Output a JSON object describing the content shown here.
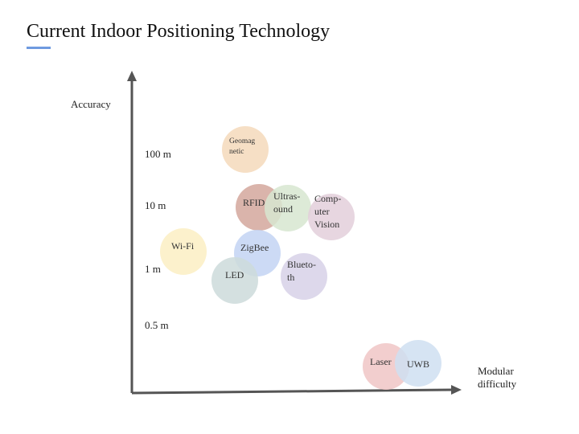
{
  "title": "Current Indoor Positioning Technology",
  "accent_color": "#6f9ae0",
  "axis_color": "#555555",
  "y_axis_label": "Accuracy",
  "x_axis_label": [
    "Modular",
    "difficulty"
  ],
  "y_ticks": [
    {
      "label": "100 m"
    },
    {
      "label": "10 m"
    },
    {
      "label": "1 m"
    },
    {
      "label": "0.5 m"
    }
  ],
  "technologies": [
    {
      "label": [
        "Geomag",
        "netic"
      ],
      "color": "#f5d9bb"
    },
    {
      "label": [
        "RFID"
      ],
      "color": "#d3a79c"
    },
    {
      "label": [
        "Ultras-",
        "ound"
      ],
      "color": "#d7e6d0"
    },
    {
      "label": [
        "Comp-",
        "uter",
        "Vision"
      ],
      "color": "#e3cfdb"
    },
    {
      "label": [
        "Wi-Fi"
      ],
      "color": "#fbefc3"
    },
    {
      "label": [
        "ZigBee"
      ],
      "color": "#c3d3f3"
    },
    {
      "label": [
        "LED"
      ],
      "color": "#cddada"
    },
    {
      "label": [
        "Blueto-",
        "th"
      ],
      "color": "#d7d1e8"
    },
    {
      "label": [
        "Laser"
      ],
      "color": "#f0c6c6"
    },
    {
      "label": [
        "UWB"
      ],
      "color": "#cfdff1"
    }
  ]
}
